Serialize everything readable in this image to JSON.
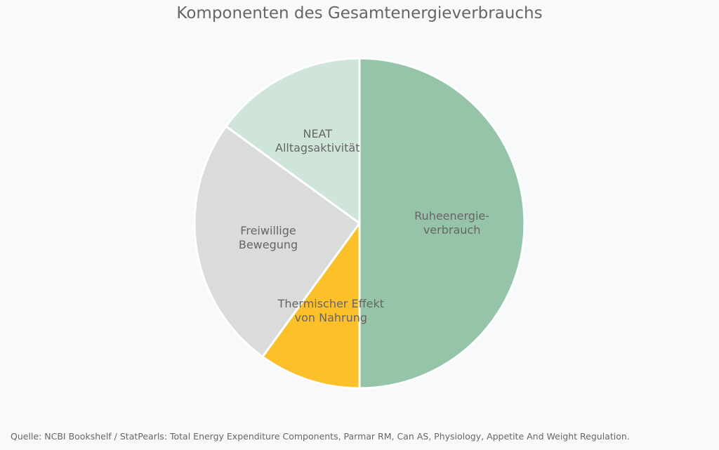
{
  "chart_data": {
    "type": "pie",
    "title": "Komponenten des Gesamtenergieverbrauchs",
    "categories": [
      "Ruheenergie-\nverbrauch",
      "Thermischer Effekt\nvon Nahrung",
      "Freiwillige\nBewegung",
      "NEAT\nAlltagsaktivität"
    ],
    "values": [
      50,
      10,
      25,
      15
    ],
    "colors": [
      "#95c4a9",
      "#fcc02a",
      "#d9dcdb",
      "#cfe5da"
    ],
    "source": "Quelle: NCBI Bookshelf / StatPearls: Total Energy Expenditure Components, Parmar RM, Can AS, Physiology, Appetite And Weight Regulation."
  }
}
